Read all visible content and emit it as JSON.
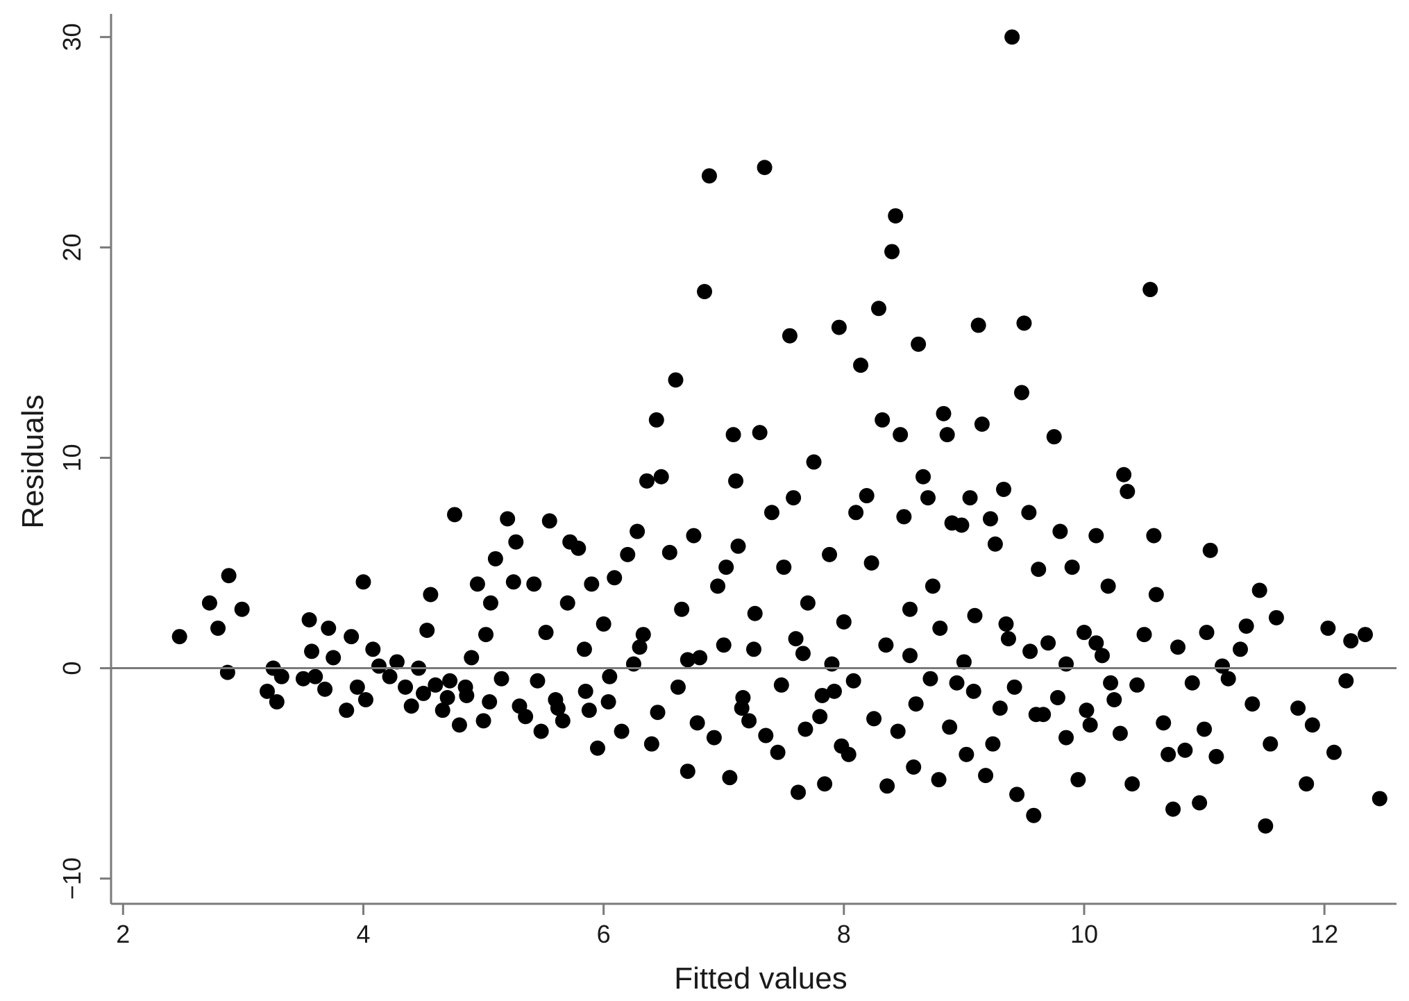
{
  "chart_data": {
    "type": "scatter",
    "xlabel": "Fitted values",
    "ylabel": "Residuals",
    "xlim": [
      1.9,
      12.6
    ],
    "ylim": [
      -11.2,
      31.1
    ],
    "xticks": [
      2,
      4,
      6,
      8,
      10,
      12
    ],
    "yticks": [
      -10,
      0,
      10,
      20,
      30
    ],
    "xtick_labels": [
      "2",
      "4",
      "6",
      "8",
      "10",
      "12"
    ],
    "ytick_labels": [
      "−10",
      "0",
      "10",
      "20",
      "30"
    ],
    "reference_line_y": 0,
    "grid": false,
    "legend": "none",
    "point_color": "#000000",
    "series": [
      {
        "points": [
          [
            2.47,
            1.5
          ],
          [
            2.72,
            3.1
          ],
          [
            2.79,
            1.9
          ],
          [
            2.88,
            4.4
          ],
          [
            2.87,
            -0.2
          ],
          [
            2.99,
            2.8
          ],
          [
            3.2,
            -1.1
          ],
          [
            3.25,
            0.0
          ],
          [
            3.28,
            -1.6
          ],
          [
            3.32,
            -0.4
          ],
          [
            3.5,
            -0.5
          ],
          [
            3.55,
            2.3
          ],
          [
            3.57,
            0.8
          ],
          [
            3.6,
            -0.4
          ],
          [
            3.68,
            -1.0
          ],
          [
            3.71,
            1.9
          ],
          [
            3.75,
            0.5
          ],
          [
            3.86,
            -2.0
          ],
          [
            3.9,
            1.5
          ],
          [
            3.95,
            -0.9
          ],
          [
            4.0,
            4.1
          ],
          [
            4.02,
            -1.5
          ],
          [
            4.08,
            0.9
          ],
          [
            4.13,
            0.1
          ],
          [
            4.22,
            -0.4
          ],
          [
            4.28,
            0.3
          ],
          [
            4.35,
            -0.9
          ],
          [
            4.4,
            -1.8
          ],
          [
            4.46,
            0.0
          ],
          [
            4.5,
            -1.2
          ],
          [
            4.53,
            1.8
          ],
          [
            4.56,
            3.5
          ],
          [
            4.6,
            -0.8
          ],
          [
            4.66,
            -2.0
          ],
          [
            4.72,
            -0.6
          ],
          [
            4.76,
            7.3
          ],
          [
            4.8,
            -2.7
          ],
          [
            4.86,
            -1.3
          ],
          [
            4.9,
            0.5
          ],
          [
            4.95,
            4.0
          ],
          [
            5.0,
            -2.5
          ],
          [
            5.02,
            1.6
          ],
          [
            5.06,
            3.1
          ],
          [
            5.1,
            5.2
          ],
          [
            5.15,
            -0.5
          ],
          [
            5.2,
            7.1
          ],
          [
            5.25,
            4.1
          ],
          [
            5.27,
            6.0
          ],
          [
            5.3,
            -1.8
          ],
          [
            5.35,
            -2.3
          ],
          [
            5.42,
            4.0
          ],
          [
            5.48,
            -3.0
          ],
          [
            5.52,
            1.7
          ],
          [
            5.55,
            7.0
          ],
          [
            5.6,
            -1.5
          ],
          [
            5.66,
            -2.5
          ],
          [
            5.7,
            3.1
          ],
          [
            5.72,
            6.0
          ],
          [
            5.79,
            5.7
          ],
          [
            5.84,
            0.9
          ],
          [
            5.88,
            -2.0
          ],
          [
            5.9,
            4.0
          ],
          [
            5.95,
            -3.8
          ],
          [
            6.0,
            2.1
          ],
          [
            6.04,
            -1.6
          ],
          [
            6.09,
            4.3
          ],
          [
            6.15,
            -3.0
          ],
          [
            6.2,
            5.4
          ],
          [
            6.25,
            0.2
          ],
          [
            6.28,
            6.5
          ],
          [
            6.33,
            1.6
          ],
          [
            6.36,
            8.9
          ],
          [
            6.4,
            -3.6
          ],
          [
            6.44,
            11.8
          ],
          [
            6.48,
            9.1
          ],
          [
            6.55,
            5.5
          ],
          [
            6.6,
            13.7
          ],
          [
            6.65,
            2.8
          ],
          [
            6.7,
            -4.9
          ],
          [
            6.75,
            6.3
          ],
          [
            6.8,
            0.5
          ],
          [
            6.84,
            17.9
          ],
          [
            6.88,
            23.4
          ],
          [
            6.92,
            -3.3
          ],
          [
            6.95,
            3.9
          ],
          [
            7.0,
            1.1
          ],
          [
            7.02,
            4.8
          ],
          [
            7.05,
            -5.2
          ],
          [
            7.08,
            11.1
          ],
          [
            7.1,
            8.9
          ],
          [
            7.12,
            5.8
          ],
          [
            7.16,
            -1.4
          ],
          [
            7.21,
            -2.5
          ],
          [
            7.26,
            2.6
          ],
          [
            7.3,
            11.2
          ],
          [
            7.34,
            23.8
          ],
          [
            7.4,
            7.4
          ],
          [
            7.45,
            -4.0
          ],
          [
            7.5,
            4.8
          ],
          [
            7.55,
            15.8
          ],
          [
            7.58,
            8.1
          ],
          [
            7.62,
            -5.9
          ],
          [
            7.66,
            0.7
          ],
          [
            7.7,
            3.1
          ],
          [
            7.75,
            9.8
          ],
          [
            7.8,
            -2.3
          ],
          [
            7.84,
            -5.5
          ],
          [
            7.88,
            5.4
          ],
          [
            7.92,
            -1.1
          ],
          [
            7.96,
            16.2
          ],
          [
            8.0,
            2.2
          ],
          [
            8.04,
            -4.1
          ],
          [
            8.1,
            7.4
          ],
          [
            8.14,
            14.4
          ],
          [
            8.19,
            8.2
          ],
          [
            8.23,
            5.0
          ],
          [
            8.29,
            17.1
          ],
          [
            8.32,
            11.8
          ],
          [
            8.36,
            -5.6
          ],
          [
            8.4,
            19.8
          ],
          [
            8.43,
            21.5
          ],
          [
            8.47,
            11.1
          ],
          [
            8.5,
            7.2
          ],
          [
            8.55,
            2.8
          ],
          [
            8.58,
            -4.7
          ],
          [
            8.62,
            15.4
          ],
          [
            8.66,
            9.1
          ],
          [
            8.7,
            8.1
          ],
          [
            8.74,
            3.9
          ],
          [
            8.79,
            -5.3
          ],
          [
            8.83,
            12.1
          ],
          [
            8.86,
            11.1
          ],
          [
            8.9,
            6.9
          ],
          [
            8.94,
            -0.7
          ],
          [
            8.98,
            6.8
          ],
          [
            9.02,
            -4.1
          ],
          [
            9.05,
            8.1
          ],
          [
            9.09,
            2.5
          ],
          [
            9.12,
            16.3
          ],
          [
            9.15,
            11.6
          ],
          [
            9.18,
            -5.1
          ],
          [
            9.22,
            7.1
          ],
          [
            9.26,
            5.9
          ],
          [
            9.3,
            -1.9
          ],
          [
            9.33,
            8.5
          ],
          [
            9.37,
            1.4
          ],
          [
            9.4,
            30.0
          ],
          [
            9.44,
            -6.0
          ],
          [
            9.48,
            13.1
          ],
          [
            9.5,
            16.4
          ],
          [
            9.54,
            7.4
          ],
          [
            9.58,
            -7.0
          ],
          [
            9.62,
            4.7
          ],
          [
            9.66,
            -2.2
          ],
          [
            9.7,
            1.2
          ],
          [
            9.75,
            11.0
          ],
          [
            9.8,
            6.5
          ],
          [
            9.85,
            -3.3
          ],
          [
            9.9,
            4.8
          ],
          [
            9.95,
            -5.3
          ],
          [
            10.0,
            1.7
          ],
          [
            10.05,
            -2.7
          ],
          [
            10.1,
            6.3
          ],
          [
            10.15,
            0.6
          ],
          [
            10.2,
            3.9
          ],
          [
            10.25,
            -1.5
          ],
          [
            10.3,
            -3.1
          ],
          [
            10.33,
            9.2
          ],
          [
            10.36,
            8.4
          ],
          [
            10.4,
            -5.5
          ],
          [
            10.44,
            -0.8
          ],
          [
            10.5,
            1.6
          ],
          [
            10.55,
            18.0
          ],
          [
            10.58,
            6.3
          ],
          [
            10.6,
            3.5
          ],
          [
            10.66,
            -2.6
          ],
          [
            10.7,
            -4.1
          ],
          [
            10.74,
            -6.7
          ],
          [
            10.78,
            1.0
          ],
          [
            10.84,
            -3.9
          ],
          [
            10.9,
            -0.7
          ],
          [
            10.96,
            -6.4
          ],
          [
            11.0,
            -2.9
          ],
          [
            11.02,
            1.7
          ],
          [
            11.05,
            5.6
          ],
          [
            11.1,
            -4.2
          ],
          [
            11.15,
            0.1
          ],
          [
            11.2,
            -0.5
          ],
          [
            11.3,
            0.9
          ],
          [
            11.35,
            2.0
          ],
          [
            11.4,
            -1.7
          ],
          [
            11.46,
            3.7
          ],
          [
            11.51,
            -7.5
          ],
          [
            11.55,
            -3.6
          ],
          [
            11.6,
            2.4
          ],
          [
            11.78,
            -1.9
          ],
          [
            11.85,
            -5.5
          ],
          [
            11.9,
            -2.7
          ],
          [
            12.03,
            1.9
          ],
          [
            12.08,
            -4.0
          ],
          [
            12.18,
            -0.6
          ],
          [
            12.22,
            1.3
          ],
          [
            12.34,
            1.6
          ],
          [
            12.46,
            -6.2
          ],
          [
            5.85,
            -1.1
          ],
          [
            6.05,
            -0.4
          ],
          [
            6.45,
            -2.1
          ],
          [
            6.62,
            -0.9
          ],
          [
            6.78,
            -2.6
          ],
          [
            7.15,
            -1.9
          ],
          [
            7.35,
            -3.2
          ],
          [
            7.48,
            -0.8
          ],
          [
            7.68,
            -2.9
          ],
          [
            7.82,
            -1.3
          ],
          [
            7.98,
            -3.7
          ],
          [
            8.08,
            -0.6
          ],
          [
            8.25,
            -2.4
          ],
          [
            8.45,
            -3.0
          ],
          [
            8.6,
            -1.7
          ],
          [
            8.72,
            -0.5
          ],
          [
            8.88,
            -2.8
          ],
          [
            9.08,
            -1.1
          ],
          [
            9.24,
            -3.6
          ],
          [
            9.42,
            -0.9
          ],
          [
            9.6,
            -2.2
          ],
          [
            9.78,
            -1.4
          ],
          [
            10.02,
            -2.0
          ],
          [
            10.22,
            -0.7
          ],
          [
            5.45,
            -0.6
          ],
          [
            5.62,
            -1.9
          ],
          [
            6.3,
            1.0
          ],
          [
            6.7,
            0.4
          ],
          [
            7.25,
            0.9
          ],
          [
            7.6,
            1.4
          ],
          [
            7.9,
            0.2
          ],
          [
            8.35,
            1.1
          ],
          [
            8.55,
            0.6
          ],
          [
            8.8,
            1.9
          ],
          [
            9.0,
            0.3
          ],
          [
            9.35,
            2.1
          ],
          [
            9.55,
            0.8
          ],
          [
            9.85,
            0.2
          ],
          [
            10.1,
            1.2
          ],
          [
            4.7,
            -1.4
          ],
          [
            4.85,
            -0.9
          ],
          [
            5.05,
            -1.6
          ]
        ]
      }
    ]
  }
}
